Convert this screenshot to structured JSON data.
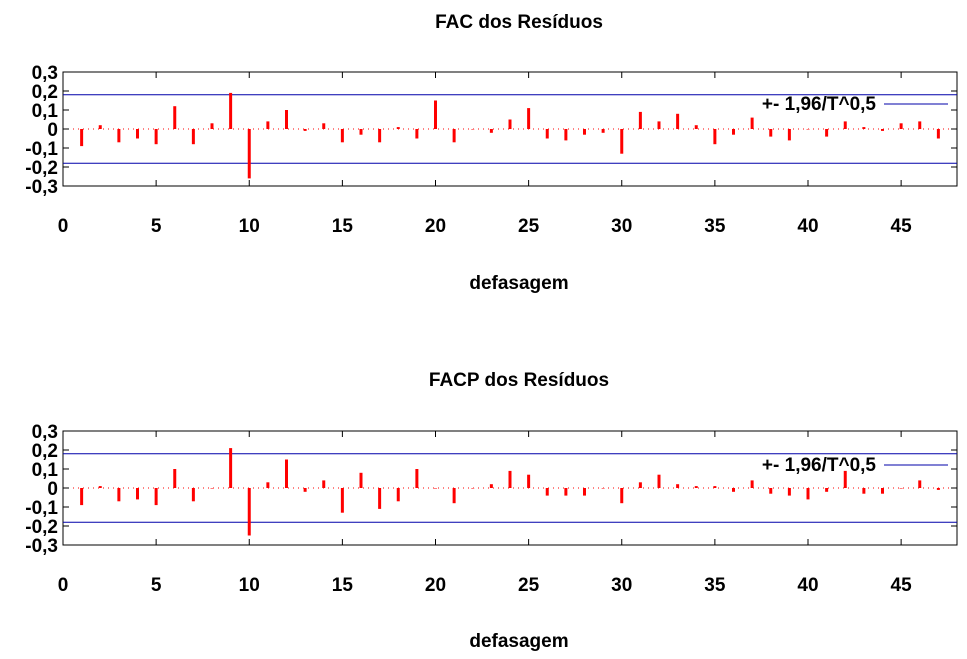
{
  "colors": {
    "bar": "#ff0000",
    "band": "#0000aa",
    "axis": "#000000",
    "zero_line": "#ff0000"
  },
  "chart_data": [
    {
      "type": "bar",
      "title": "FAC dos Resíduos",
      "xlabel": "defasagem",
      "ylabel": "",
      "xlim": [
        0,
        48
      ],
      "ylim": [
        -0.3,
        0.3
      ],
      "x_ticks": [
        "0",
        "5",
        "10",
        "15",
        "20",
        "25",
        "30",
        "35",
        "40",
        "45"
      ],
      "y_ticks": [
        "0,3",
        "0,2",
        "0,1",
        "0",
        "-0,1",
        "-0,2",
        "-0,3"
      ],
      "legend": "+- 1,96/T^0,5",
      "legend_position": "top-right",
      "confidence_band": 0.18,
      "lags": [
        1,
        2,
        3,
        4,
        5,
        6,
        7,
        8,
        9,
        10,
        11,
        12,
        13,
        14,
        15,
        16,
        17,
        18,
        19,
        20,
        21,
        22,
        23,
        24,
        25,
        26,
        27,
        28,
        29,
        30,
        31,
        32,
        33,
        34,
        35,
        36,
        37,
        38,
        39,
        40,
        41,
        42,
        43,
        44,
        45,
        46,
        47
      ],
      "values": [
        -0.09,
        0.02,
        -0.07,
        -0.05,
        -0.08,
        0.12,
        -0.08,
        0.03,
        0.19,
        -0.26,
        0.04,
        0.1,
        -0.01,
        0.03,
        -0.07,
        -0.03,
        -0.07,
        0.01,
        -0.05,
        0.15,
        -0.07,
        0.0,
        -0.02,
        0.05,
        0.11,
        -0.05,
        -0.06,
        -0.03,
        -0.02,
        -0.13,
        0.09,
        0.04,
        0.08,
        0.02,
        -0.08,
        -0.03,
        0.06,
        -0.04,
        -0.06,
        0.0,
        -0.04,
        0.04,
        0.01,
        -0.01,
        0.03,
        0.04,
        -0.05
      ]
    },
    {
      "type": "bar",
      "title": "FACP dos Resíduos",
      "xlabel": "defasagem",
      "ylabel": "",
      "xlim": [
        0,
        48
      ],
      "ylim": [
        -0.3,
        0.3
      ],
      "x_ticks": [
        "0",
        "5",
        "10",
        "15",
        "20",
        "25",
        "30",
        "35",
        "40",
        "45"
      ],
      "y_ticks": [
        "0,3",
        "0,2",
        "0,1",
        "0",
        "-0,1",
        "-0,2",
        "-0,3"
      ],
      "legend": "+- 1,96/T^0,5",
      "legend_position": "top-right",
      "confidence_band": 0.18,
      "lags": [
        1,
        2,
        3,
        4,
        5,
        6,
        7,
        8,
        9,
        10,
        11,
        12,
        13,
        14,
        15,
        16,
        17,
        18,
        19,
        20,
        21,
        22,
        23,
        24,
        25,
        26,
        27,
        28,
        29,
        30,
        31,
        32,
        33,
        34,
        35,
        36,
        37,
        38,
        39,
        40,
        41,
        42,
        43,
        44,
        45,
        46,
        47
      ],
      "values": [
        -0.09,
        0.01,
        -0.07,
        -0.06,
        -0.09,
        0.1,
        -0.07,
        0.0,
        0.21,
        -0.25,
        0.03,
        0.15,
        -0.02,
        0.04,
        -0.13,
        0.08,
        -0.11,
        -0.07,
        0.1,
        0.0,
        -0.08,
        0.0,
        0.02,
        0.09,
        0.07,
        -0.04,
        -0.04,
        -0.04,
        0.0,
        -0.08,
        0.03,
        0.07,
        0.02,
        0.01,
        0.01,
        -0.02,
        0.04,
        -0.03,
        -0.04,
        -0.06,
        -0.02,
        0.09,
        -0.03,
        -0.03,
        0.0,
        0.04,
        -0.01
      ]
    }
  ]
}
